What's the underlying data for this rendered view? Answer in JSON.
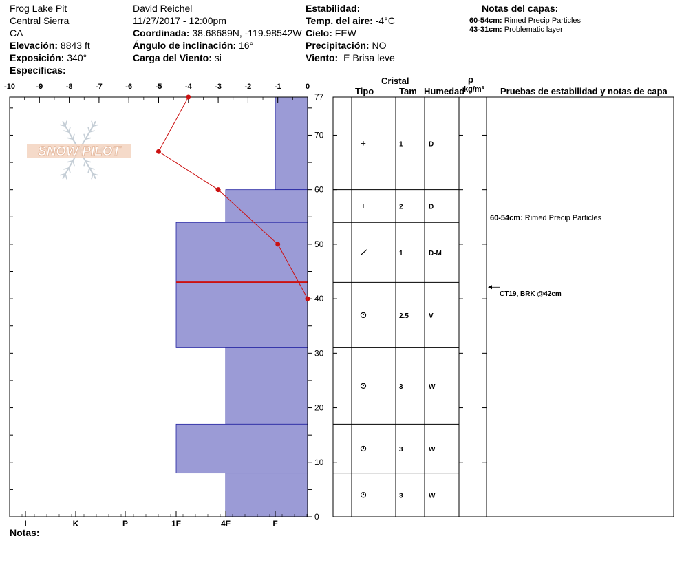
{
  "header": {
    "pit_name": "Frog Lake Pit",
    "range": "Central Sierra",
    "state": "CA",
    "elevation_label": "Elevación:",
    "elevation": "8843 ft",
    "aspect_label": "Exposición:",
    "aspect": "340°",
    "specifics_label": "Especificas:",
    "observer": "David Reichel",
    "datetime": "11/27/2017 - 12:00pm",
    "coord_label": "Coordinada:",
    "coord": "38.68689N, -119.98542W",
    "slope_label": "Ángulo de inclinación:",
    "slope": "16°",
    "windload_label": "Carga del Viento:",
    "windload": "si",
    "stability_label": "Estabilidad:",
    "airtemp_label": "Temp. del aire:",
    "airtemp": "-4°C",
    "sky_label": "Cielo:",
    "sky": "FEW",
    "precip_label": "Precipitación:",
    "precip": "NO",
    "wind_label": "Viento:",
    "wind": "E Brisa leve",
    "layer_notes_title": "Notas del capas:",
    "layer_notes": [
      {
        "range": "60-54cm:",
        "text": "Rimed Precip Particles"
      },
      {
        "range": "43-31cm:",
        "text": "Problematic layer"
      }
    ],
    "notes_label": "Notas:"
  },
  "logo_text": "SNOW PILOT",
  "table": {
    "crystal_title": "Cristal",
    "col_type": "Tipo",
    "col_size": "Tam",
    "col_moisture": "Humedad",
    "col_density_symbol": "ρ",
    "col_density_unit": "kg/m³",
    "col_tests": "Pruebas de estabilidad y notas de capa",
    "layer_note_range": "60-54cm:",
    "layer_note_text": "Rimed Precip Particles",
    "test_result": "CT19, BRK @42cm",
    "rows": [
      {
        "top": 77,
        "bottom": 60,
        "type": "+",
        "size": "1",
        "moisture": "D"
      },
      {
        "top": 60,
        "bottom": 54,
        "type": "+",
        "size": "2",
        "moisture": "D"
      },
      {
        "top": 54,
        "bottom": 43,
        "type": "/",
        "size": "1",
        "moisture": "D-M"
      },
      {
        "top": 43,
        "bottom": 31,
        "type": "round",
        "size": "2.5",
        "moisture": "V"
      },
      {
        "top": 31,
        "bottom": 17,
        "type": "round",
        "size": "3",
        "moisture": "W"
      },
      {
        "top": 17,
        "bottom": 8,
        "type": "round",
        "size": "3",
        "moisture": "W"
      },
      {
        "top": 8,
        "bottom": 0,
        "type": "round",
        "size": "3",
        "moisture": "W"
      }
    ]
  },
  "colors": {
    "hardness_fill": "#9b9bd6",
    "hardness_stroke": "#2020a0",
    "temp_line": "#cc1111",
    "weak_layer": "#cc1111"
  },
  "chart_data": {
    "type": "snow-profile",
    "temperature_axis": {
      "label": "",
      "ticks": [
        -10,
        -9,
        -8,
        -7,
        -6,
        -5,
        -4,
        -3,
        -2,
        -1,
        0
      ],
      "range": [
        -10,
        0
      ],
      "units": "°C"
    },
    "depth_axis": {
      "ticks": [
        0,
        10,
        20,
        30,
        40,
        50,
        60,
        70,
        77
      ],
      "range": [
        0,
        77
      ],
      "units": "cm"
    },
    "hardness_axis": {
      "ticks": [
        "I",
        "K",
        "P",
        "1F",
        "4F",
        "F"
      ]
    },
    "hardness_layers": [
      {
        "top": 77,
        "bottom": 60,
        "hardness": "F"
      },
      {
        "top": 60,
        "bottom": 54,
        "hardness": "4F"
      },
      {
        "top": 54,
        "bottom": 31,
        "hardness": "1F"
      },
      {
        "top": 31,
        "bottom": 17,
        "hardness": "4F"
      },
      {
        "top": 17,
        "bottom": 8,
        "hardness": "1F"
      },
      {
        "top": 8,
        "bottom": 0,
        "hardness": "4F"
      }
    ],
    "temperature_profile": [
      {
        "depth": 77,
        "temp": -4
      },
      {
        "depth": 67,
        "temp": -5
      },
      {
        "depth": 60,
        "temp": -3
      },
      {
        "depth": 50,
        "temp": -1
      },
      {
        "depth": 40,
        "temp": 0
      }
    ],
    "weak_layer_depth": 43
  }
}
